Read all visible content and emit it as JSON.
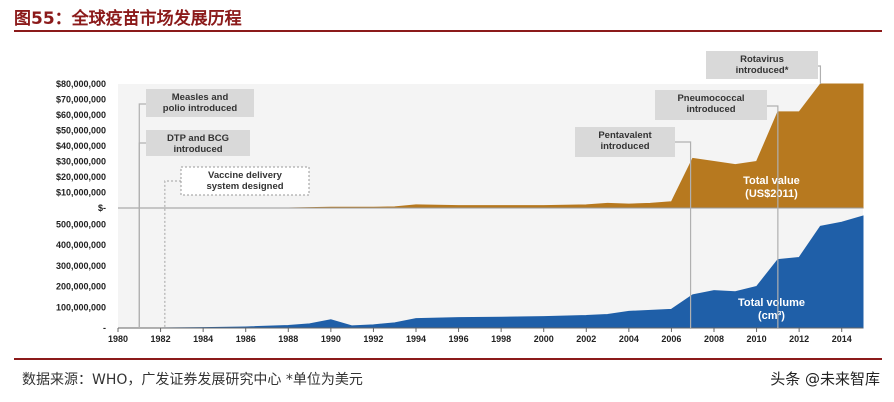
{
  "header": {
    "title": "图55：全球疫苗市场发展历程"
  },
  "footer": {
    "source": "数据来源：WHO，广发证券发展研究中心   *单位为美元",
    "watermark": "头条 @未来智库"
  },
  "colors": {
    "title": "#8b1a1a",
    "value_area": "#b7791f",
    "volume_area": "#1f5fa8",
    "annotation_box": "#d9d9d9"
  },
  "chart_data": [
    {
      "type": "area",
      "series_label": [
        "Total value",
        "(US$2011)"
      ],
      "x": [
        1980,
        1982,
        1984,
        1986,
        1988,
        1990,
        1992,
        1993,
        1994,
        1996,
        1998,
        2000,
        2002,
        2003,
        2004,
        2005,
        2006,
        2007,
        2008,
        2009,
        2010,
        2011,
        2012,
        2013,
        2014,
        2015
      ],
      "values": [
        0,
        0,
        0,
        0,
        0,
        500000,
        500000,
        700000,
        2000000,
        1500000,
        1500000,
        1500000,
        2000000,
        3000000,
        2500000,
        3000000,
        4000000,
        32000000,
        30000000,
        28000000,
        30000000,
        62000000,
        62000000,
        80000000,
        80000000,
        80000000
      ],
      "ylim": [
        0,
        80000000
      ],
      "ytick_labels": [
        "$80,000,000",
        "$70,000,000",
        "$60,000,000",
        "$50,000,000",
        "$40,000,000",
        "$30,000,000",
        "$20,000,000",
        "$10,000,000",
        "$-"
      ],
      "ytick_values": [
        80000000,
        70000000,
        60000000,
        50000000,
        40000000,
        30000000,
        20000000,
        10000000,
        0
      ]
    },
    {
      "type": "area",
      "series_label": [
        "Total volume",
        "(cm³)"
      ],
      "x": [
        1980,
        1982,
        1984,
        1986,
        1988,
        1989,
        1990,
        1991,
        1992,
        1993,
        1994,
        1996,
        1998,
        2000,
        2002,
        2003,
        2004,
        2006,
        2007,
        2008,
        2009,
        2010,
        2011,
        2012,
        2013,
        2014,
        2015
      ],
      "values": [
        0,
        0,
        2000000,
        5000000,
        12000000,
        20000000,
        40000000,
        10000000,
        15000000,
        25000000,
        45000000,
        50000000,
        52000000,
        55000000,
        60000000,
        65000000,
        80000000,
        90000000,
        160000000,
        180000000,
        175000000,
        200000000,
        330000000,
        340000000,
        490000000,
        510000000,
        540000000
      ],
      "ylim": [
        0,
        540000000
      ],
      "ytick_labels": [
        "500,000,000",
        "400,000,000",
        "300,000,000",
        "200,000,000",
        "100,000,000",
        "-"
      ],
      "ytick_values": [
        500000000,
        400000000,
        300000000,
        200000000,
        100000000,
        0
      ],
      "xtick_labels": [
        "1980",
        "1982",
        "1984",
        "1986",
        "1988",
        "1990",
        "1992",
        "1994",
        "1996",
        "1998",
        "2000",
        "2002",
        "2004",
        "2006",
        "2008",
        "2010",
        "2012",
        "2014"
      ]
    }
  ],
  "annotations": [
    {
      "id": "measles",
      "year": 1981,
      "lines": [
        "Measles and",
        "polio introduced"
      ],
      "style": "solid"
    },
    {
      "id": "dtp",
      "year": 1981,
      "lines": [
        "DTP and BCG",
        "introduced"
      ],
      "style": "solid"
    },
    {
      "id": "delivery",
      "year": 1982.2,
      "lines": [
        "Vaccine delivery",
        "system designed"
      ],
      "style": "dotted"
    },
    {
      "id": "pentavalent",
      "year": 2006.9,
      "lines": [
        "Pentavalent",
        "introduced"
      ],
      "style": "solid"
    },
    {
      "id": "pneumococcal",
      "year": 2011,
      "lines": [
        "Pneumococcal",
        "introduced"
      ],
      "style": "solid"
    },
    {
      "id": "rotavirus",
      "year": 2013,
      "lines": [
        "Rotavirus",
        "introduced*"
      ],
      "style": "solid"
    }
  ]
}
